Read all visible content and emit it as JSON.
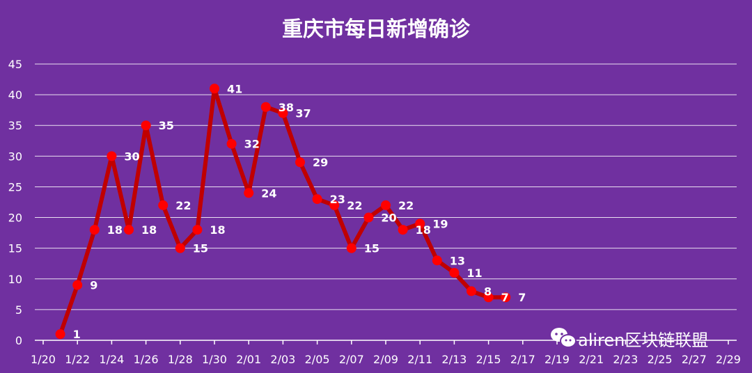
{
  "chart_data": {
    "type": "line",
    "title": "重庆市每日新增确诊",
    "xlabel": "",
    "ylabel": "",
    "ylim": [
      0,
      45
    ],
    "yticks": [
      0,
      5,
      10,
      15,
      20,
      25,
      30,
      35,
      40,
      45
    ],
    "grid": true,
    "x_tick_labels": [
      "1/20",
      "1/22",
      "1/24",
      "1/26",
      "1/28",
      "1/30",
      "2/01",
      "2/03",
      "2/05",
      "2/07",
      "2/09",
      "2/11",
      "2/13",
      "2/15",
      "2/17",
      "2/19",
      "2/21",
      "2/23",
      "2/25",
      "2/27",
      "2/29"
    ],
    "series": [
      {
        "values": [
          1,
          9,
          18,
          30,
          18,
          35,
          22,
          15,
          18,
          41,
          32,
          24,
          38,
          37,
          29,
          23,
          22,
          15,
          20,
          22,
          18,
          19,
          13,
          11,
          8,
          7,
          7
        ],
        "color": "#c00000",
        "marker_color": "#ff0000"
      }
    ]
  },
  "watermark": {
    "text": "aliren区块链联盟",
    "icon": "wechat-icon"
  }
}
